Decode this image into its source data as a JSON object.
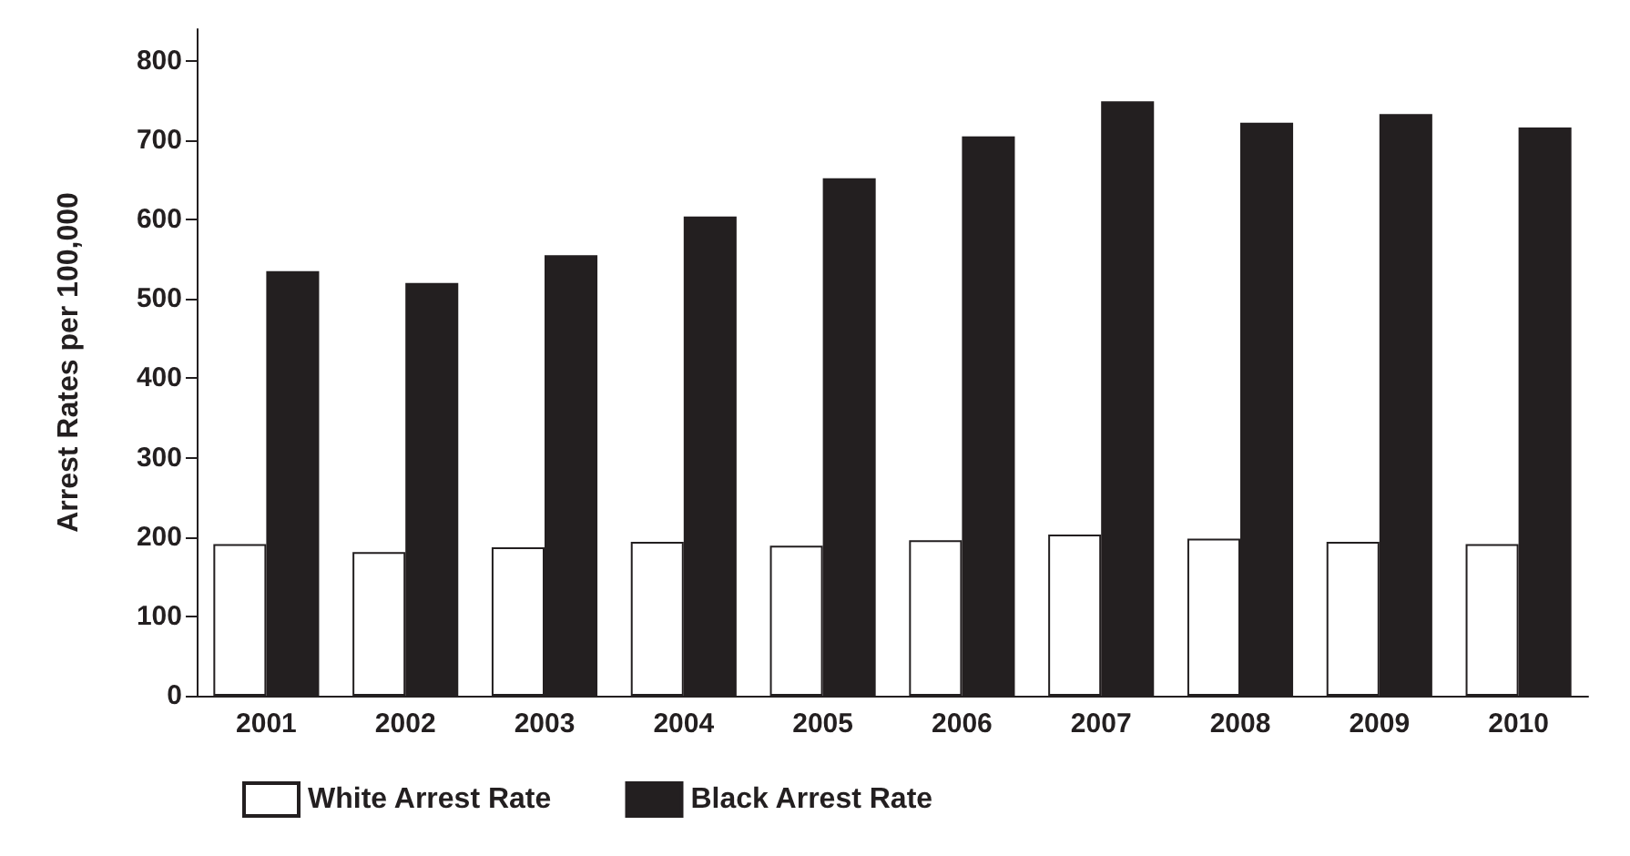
{
  "chart_data": {
    "type": "bar",
    "ylabel": "Arrest Rates per 100,000",
    "categories": [
      "2001",
      "2002",
      "2003",
      "2004",
      "2005",
      "2006",
      "2007",
      "2008",
      "2009",
      "2010"
    ],
    "series": [
      {
        "name": "White Arrest Rate",
        "color": "#ffffff",
        "values": [
          191,
          181,
          187,
          194,
          189,
          196,
          203,
          198,
          194,
          191
        ]
      },
      {
        "name": "Black Arrest Rate",
        "color": "#231f20",
        "values": [
          535,
          520,
          555,
          604,
          652,
          705,
          749,
          722,
          733,
          716
        ]
      }
    ],
    "ylim": [
      0,
      840
    ],
    "yticks": [
      0,
      100,
      200,
      300,
      400,
      500,
      600,
      700,
      800
    ],
    "grid": false,
    "legend": "bottom"
  }
}
